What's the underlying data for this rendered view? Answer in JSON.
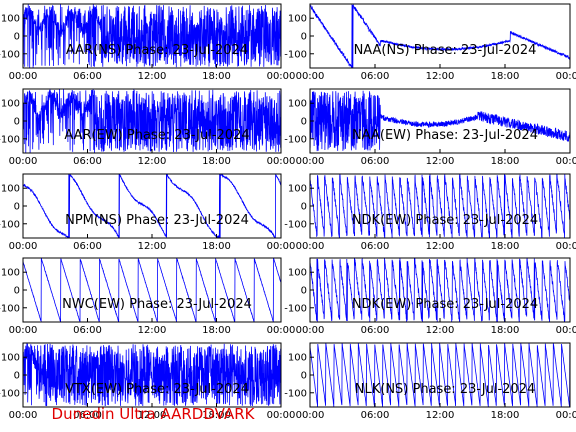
{
  "footer": "Dunedin Ultra AARDDVARK",
  "chart_data": [
    {
      "type": "line",
      "title": "AAR(NS) Phase: 23-Jul-2024",
      "x_ticks": [
        "00:00",
        "06:00",
        "12:00",
        "18:00",
        "00:00"
      ],
      "y_ticks": [
        "100",
        "0",
        "-100"
      ],
      "ylim": [
        -180,
        180
      ],
      "color": "#0000ff",
      "pattern": "noisy",
      "dense_from_hours": 7.3,
      "dense_to_hours": 24
    },
    {
      "type": "line",
      "title": "NAA(NS) Phase: 23-Jul-2024",
      "x_ticks": [
        "00:00",
        "06:00",
        "12:00",
        "18:00",
        "00:00"
      ],
      "y_ticks": [
        "100",
        "0",
        "-100"
      ],
      "ylim": [
        -180,
        180
      ],
      "color": "#0000ff",
      "pattern": "arc"
    },
    {
      "type": "line",
      "title": "AAR(EW) Phase: 23-Jul-2024",
      "x_ticks": [
        "00:00",
        "06:00",
        "12:00",
        "18:00",
        "00:00"
      ],
      "y_ticks": [
        "100",
        "0",
        "-100"
      ],
      "ylim": [
        -180,
        180
      ],
      "color": "#0000ff",
      "pattern": "noisy",
      "dense_from_hours": 6.7,
      "dense_to_hours": 24
    },
    {
      "type": "line",
      "title": "NAA(EW) Phase: 23-Jul-2024",
      "x_ticks": [
        "00:00",
        "06:00",
        "12:00",
        "18:00",
        "00:00"
      ],
      "y_ticks": [
        "100",
        "0",
        "-100"
      ],
      "ylim": [
        -180,
        180
      ],
      "color": "#0000ff",
      "pattern": "arc-noisy"
    },
    {
      "type": "line",
      "title": "NPM(NS) Phase: 23-Jul-2024",
      "x_ticks": [
        "00:00",
        "06:00",
        "12:00",
        "18:00",
        "00:00"
      ],
      "y_ticks": [
        "100",
        "0",
        "-100"
      ],
      "ylim": [
        -180,
        180
      ],
      "color": "#0000ff",
      "pattern": "slow-wrap"
    },
    {
      "type": "line",
      "title": "NDK(EW) Phase: 23-Jul-2024",
      "x_ticks": [
        "00:00",
        "06:00",
        "12:00",
        "18:00",
        "00:00"
      ],
      "y_ticks": [
        "100",
        "0",
        "-100"
      ],
      "ylim": [
        -180,
        180
      ],
      "color": "#0000ff",
      "pattern": "fast-wrap"
    },
    {
      "type": "line",
      "title": "NWC(EW) Phase: 23-Jul-2024",
      "x_ticks": [
        "00:00",
        "06:00",
        "12:00",
        "18:00",
        "00:00"
      ],
      "y_ticks": [
        "100",
        "0",
        "-100"
      ],
      "ylim": [
        -180,
        180
      ],
      "color": "#0000ff",
      "pattern": "sawtooth",
      "period_hours": 1.8
    },
    {
      "type": "line",
      "title": "NDK(EW) Phase: 23-Jul-2024",
      "x_ticks": [
        "00:00",
        "06:00",
        "12:00",
        "18:00",
        "00:00"
      ],
      "y_ticks": [
        "100",
        "0",
        "-100"
      ],
      "ylim": [
        -180,
        180
      ],
      "color": "#0000ff",
      "pattern": "fast-wrap"
    },
    {
      "type": "line",
      "title": "VTX(EW) Phase: 23-Jul-2024",
      "x_ticks": [
        "00:00",
        "06:00",
        "12:00",
        "18:00",
        "00:00"
      ],
      "y_ticks": [
        "100",
        "0",
        "-100"
      ],
      "ylim": [
        -180,
        180
      ],
      "color": "#0000ff",
      "pattern": "noisy",
      "dense_from_hours": 1.5,
      "dense_to_hours": 24
    },
    {
      "type": "line",
      "title": "NLK(NS) Phase: 23-Jul-2024",
      "x_ticks": [
        "00:00",
        "06:00",
        "12:00",
        "18:00",
        "00:00"
      ],
      "y_ticks": [
        "100",
        "0",
        "-100"
      ],
      "ylim": [
        -180,
        180
      ],
      "color": "#0000ff",
      "pattern": "sawtooth",
      "period_hours": 0.75
    }
  ]
}
